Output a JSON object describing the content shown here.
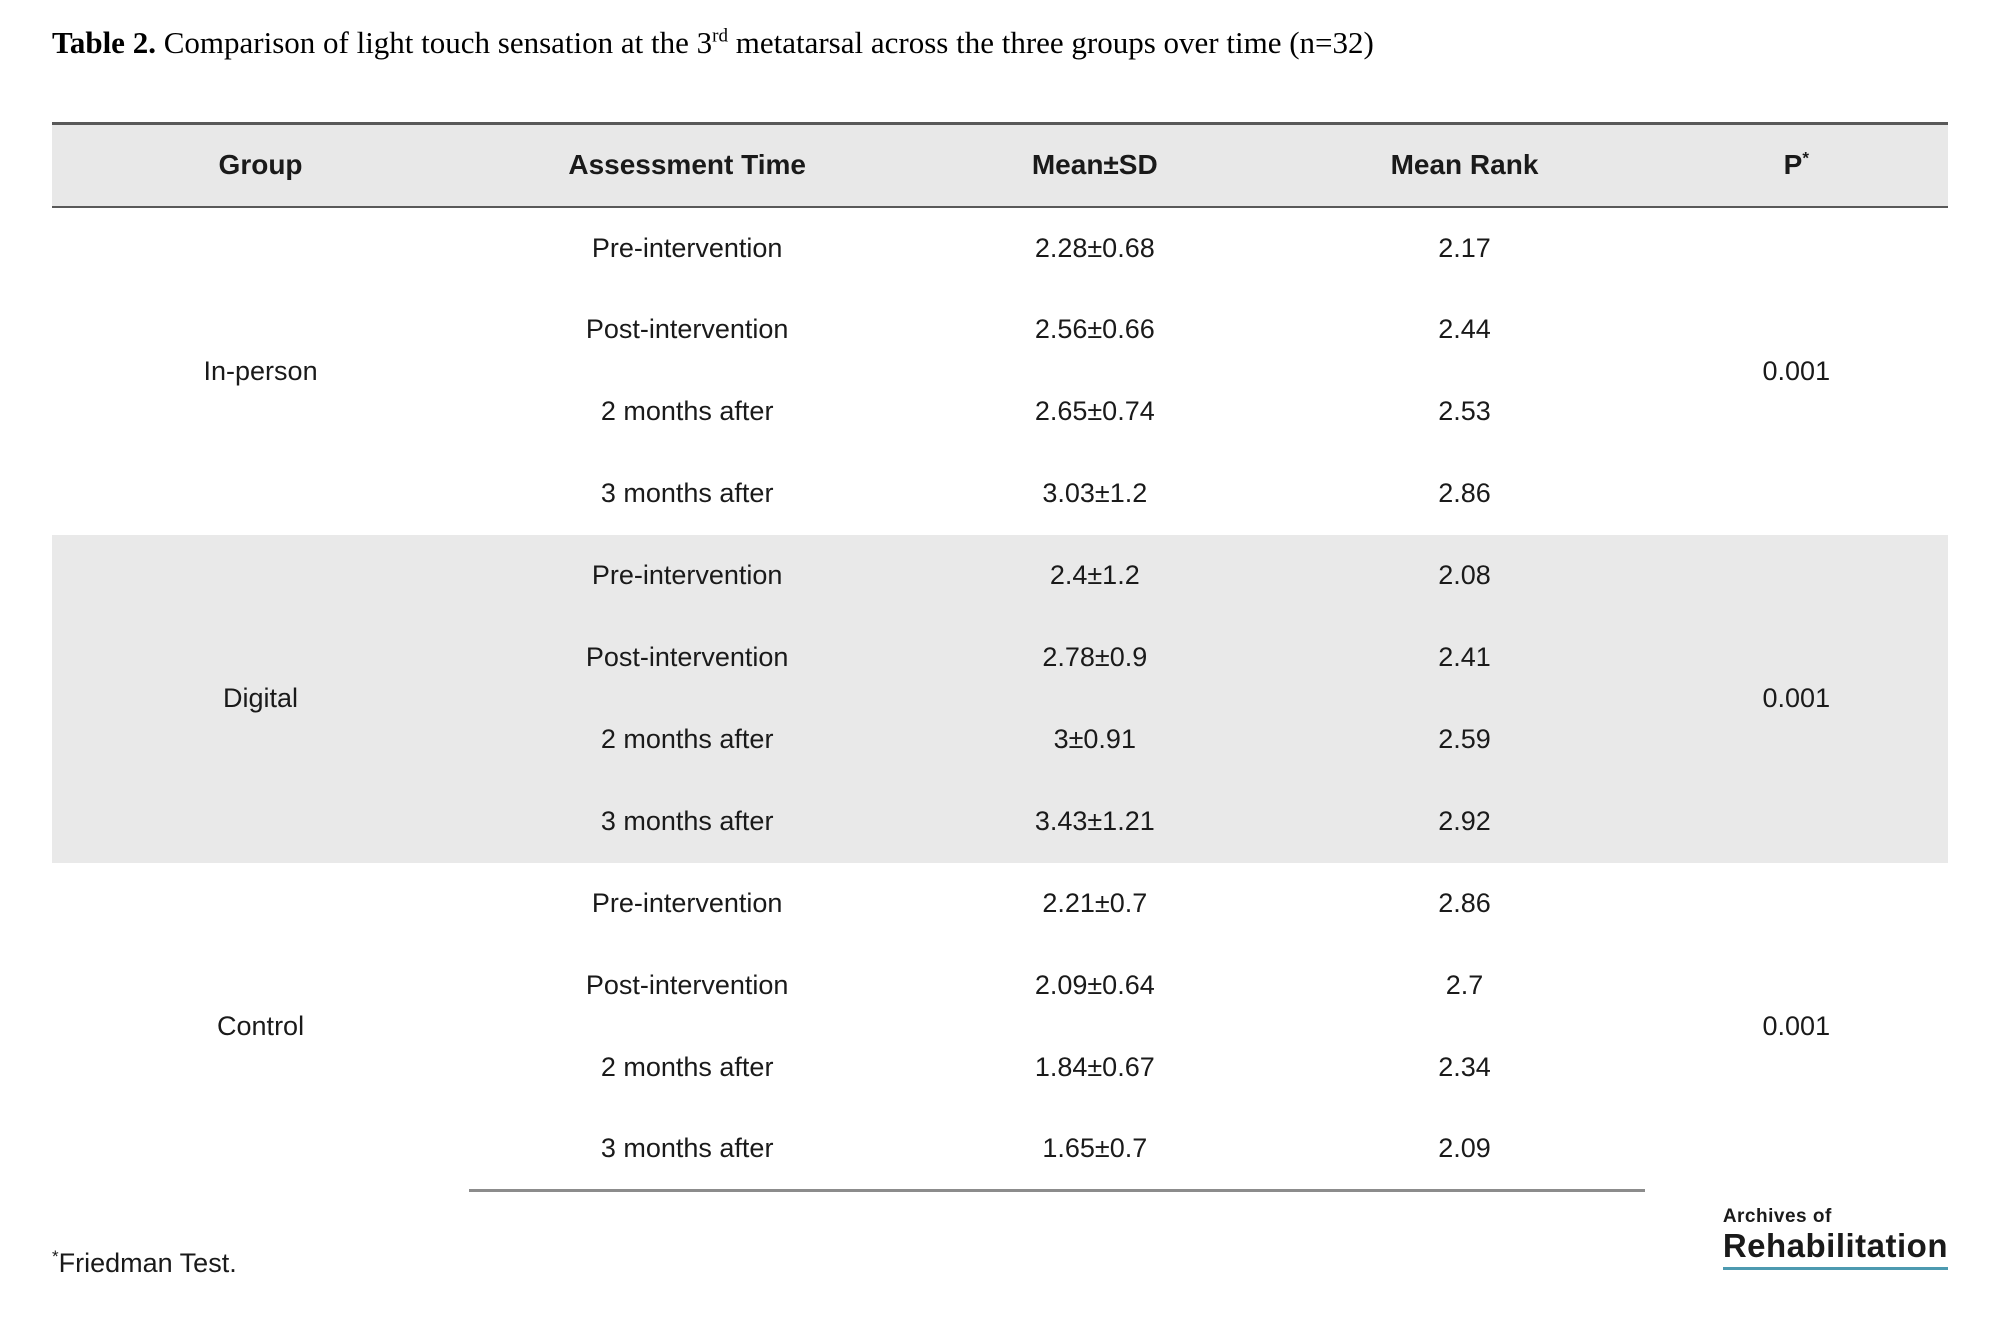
{
  "title": {
    "label": "Table 2.",
    "part1": "Comparison of light touch sensation at the 3",
    "superscript": "rd",
    "part2": " metatarsal across the three groups over time (n=32)"
  },
  "table": {
    "columns": [
      "Group",
      "Assessment Time",
      "Mean±SD",
      "Mean Rank",
      "P"
    ],
    "p_column_sup": "*",
    "groups": [
      {
        "name": "In-person",
        "p": "0.001",
        "rows": [
          {
            "time": "Pre-intervention",
            "mean_sd": "2.28±0.68",
            "mean_rank": "2.17"
          },
          {
            "time": "Post-intervention",
            "mean_sd": "2.56±0.66",
            "mean_rank": "2.44"
          },
          {
            "time": "2 months after",
            "mean_sd": "2.65±0.74",
            "mean_rank": "2.53"
          },
          {
            "time": "3 months after",
            "mean_sd": "3.03±1.2",
            "mean_rank": "2.86"
          }
        ]
      },
      {
        "name": "Digital",
        "p": "0.001",
        "rows": [
          {
            "time": "Pre-intervention",
            "mean_sd": "2.4±1.2",
            "mean_rank": "2.08"
          },
          {
            "time": "Post-intervention",
            "mean_sd": "2.78±0.9",
            "mean_rank": "2.41"
          },
          {
            "time": "2 months after",
            "mean_sd": "3±0.91",
            "mean_rank": "2.59"
          },
          {
            "time": "3 months after",
            "mean_sd": "3.43±1.21",
            "mean_rank": "2.92"
          }
        ]
      },
      {
        "name": "Control",
        "p": "0.001",
        "rows": [
          {
            "time": "Pre-intervention",
            "mean_sd": "2.21±0.7",
            "mean_rank": "2.86"
          },
          {
            "time": "Post-intervention",
            "mean_sd": "2.09±0.64",
            "mean_rank": "2.7"
          },
          {
            "time": "2 months after",
            "mean_sd": "1.84±0.67",
            "mean_rank": "2.34"
          },
          {
            "time": "3 months after",
            "mean_sd": "1.65±0.7",
            "mean_rank": "2.09"
          }
        ]
      }
    ]
  },
  "footnote": {
    "sup": "*",
    "text": "Friedman Test."
  },
  "logo": {
    "line1": "Archives of",
    "line2": "Rehabilitation",
    "underline_color": "#4d9ab0"
  },
  "colors": {
    "header_bg": "#e8e8e8",
    "shaded_row_bg": "#e9e9e9",
    "header_border": "#595959",
    "bottom_border": "#8c8c8c",
    "text": "#1a1a1a"
  }
}
